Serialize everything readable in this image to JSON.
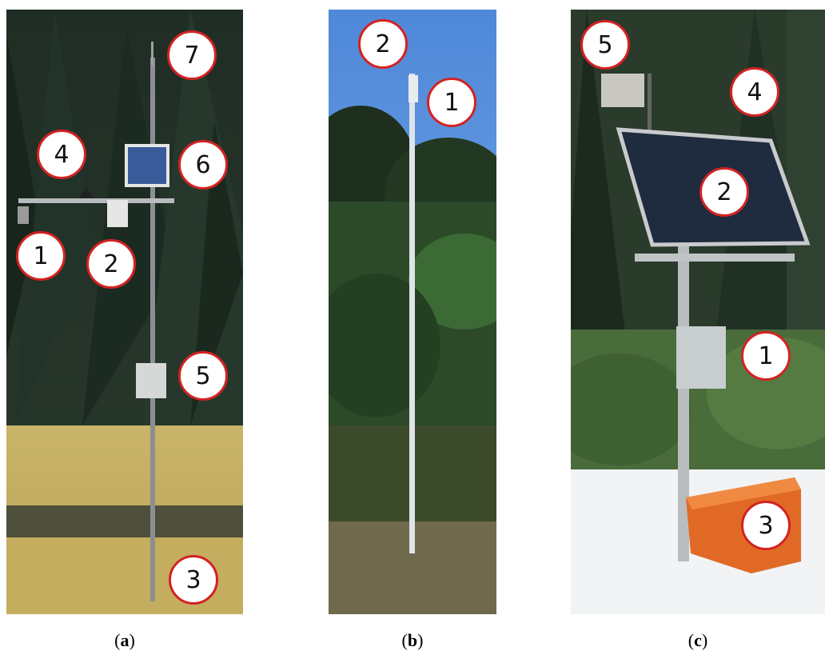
{
  "panels": [
    {
      "id": "a",
      "caption_letter": "a",
      "markers": [
        "7",
        "4",
        "6",
        "1",
        "2",
        "5",
        "3"
      ]
    },
    {
      "id": "b",
      "caption_letter": "b",
      "markers": [
        "2",
        "1"
      ]
    },
    {
      "id": "c",
      "caption_letter": "c",
      "markers": [
        "5",
        "4",
        "2",
        "1",
        "3"
      ]
    }
  ],
  "colors": {
    "marker_border": "#d32222",
    "marker_fill": "#ffffff"
  }
}
